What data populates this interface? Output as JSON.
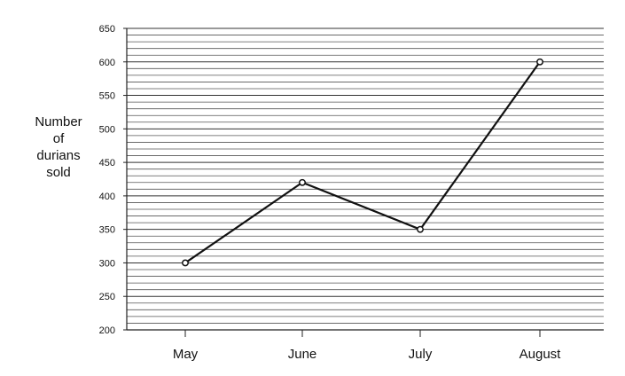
{
  "chart_data": {
    "type": "line",
    "title": "",
    "xlabel": "",
    "ylabel_lines": [
      "Number",
      "of",
      "durians",
      "sold"
    ],
    "categories": [
      "May",
      "June",
      "July",
      "August"
    ],
    "series": [
      {
        "values": [
          300,
          420,
          350,
          600
        ]
      }
    ],
    "ylim": [
      200,
      650
    ],
    "y_ticks": [
      200,
      250,
      300,
      350,
      400,
      450,
      500,
      550,
      600,
      650
    ],
    "grid": true,
    "minor_grid_step": 10
  }
}
